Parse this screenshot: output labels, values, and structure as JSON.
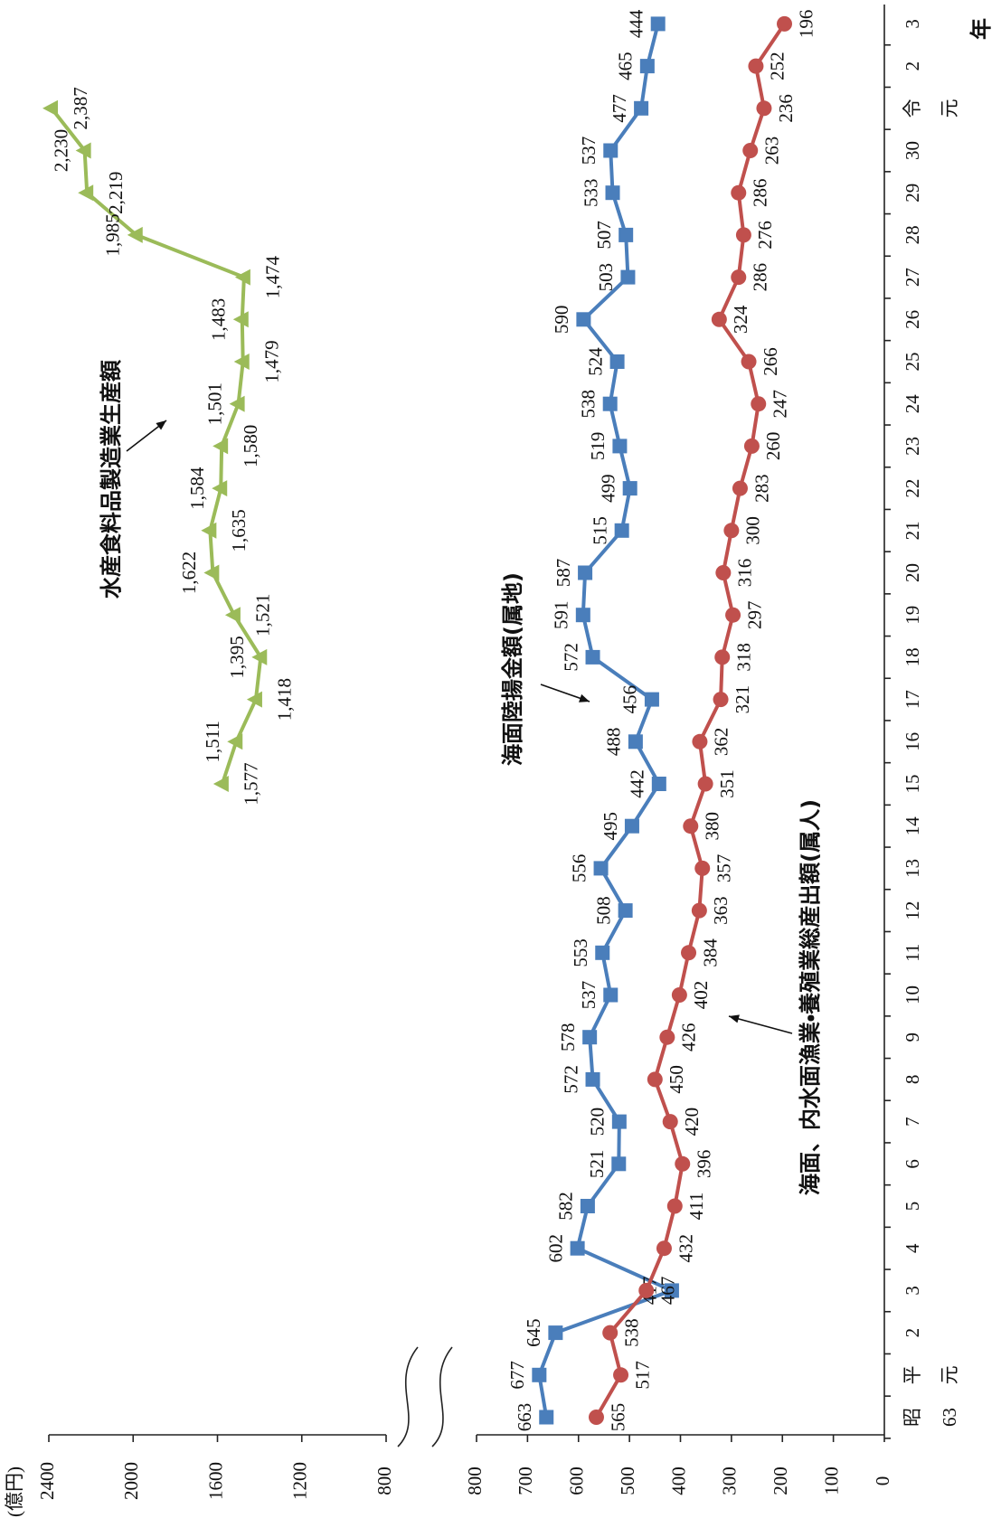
{
  "chart_data": {
    "type": "line",
    "ylabel": "(億円)",
    "xlabel": "年",
    "categories": [
      "昭63",
      "平元",
      "2",
      "3",
      "4",
      "5",
      "6",
      "7",
      "8",
      "9",
      "10",
      "11",
      "12",
      "13",
      "14",
      "15",
      "16",
      "17",
      "18",
      "19",
      "20",
      "21",
      "22",
      "23",
      "24",
      "25",
      "26",
      "27",
      "28",
      "29",
      "30",
      "令元",
      "2",
      "3"
    ],
    "ylim": [
      0,
      800
    ],
    "yticks": [
      0,
      100,
      200,
      300,
      400,
      500,
      600,
      700,
      800
    ],
    "y2lim": [
      800,
      2400
    ],
    "y2ticks": [
      800,
      1200,
      1600,
      2000,
      2400
    ],
    "series": [
      {
        "name": "水産食料品製造業生産額",
        "color": "#9bbb59",
        "marker": "triangle",
        "axis": "y2",
        "values": [
          null,
          null,
          null,
          null,
          null,
          null,
          null,
          null,
          null,
          null,
          null,
          null,
          null,
          null,
          null,
          1577,
          1511,
          1418,
          1395,
          1521,
          1622,
          1635,
          1584,
          1580,
          1501,
          1479,
          1483,
          1474,
          1985,
          2219,
          2230,
          2387,
          null,
          null
        ],
        "value_labels": [
          null,
          null,
          null,
          null,
          null,
          null,
          null,
          null,
          null,
          null,
          null,
          null,
          null,
          null,
          null,
          "1,577",
          "1,511",
          "1,418",
          "1,395",
          "1,521",
          "1,622",
          "1,635",
          "1,584",
          "1,580",
          "1,501",
          "1,479",
          "1,483",
          "1,474",
          "1,985",
          "2,219",
          "2,230",
          "2,387",
          null,
          null
        ]
      },
      {
        "name": "海面陸揚金額(属地)",
        "color": "#4a7ebb",
        "marker": "square",
        "values": [
          663,
          677,
          645,
          417,
          602,
          582,
          521,
          520,
          572,
          578,
          537,
          553,
          508,
          556,
          495,
          442,
          488,
          456,
          572,
          591,
          587,
          515,
          499,
          519,
          538,
          524,
          590,
          503,
          507,
          533,
          537,
          477,
          465,
          444
        ]
      },
      {
        "name": "海面、内水面漁業・養殖業総産出額(属人)",
        "color": "#c0504d",
        "marker": "circle",
        "values": [
          565,
          517,
          538,
          467,
          432,
          411,
          396,
          420,
          450,
          426,
          402,
          384,
          363,
          357,
          380,
          351,
          362,
          321,
          318,
          297,
          316,
          300,
          283,
          260,
          247,
          266,
          324,
          286,
          276,
          286,
          263,
          236,
          252,
          196
        ]
      }
    ]
  }
}
